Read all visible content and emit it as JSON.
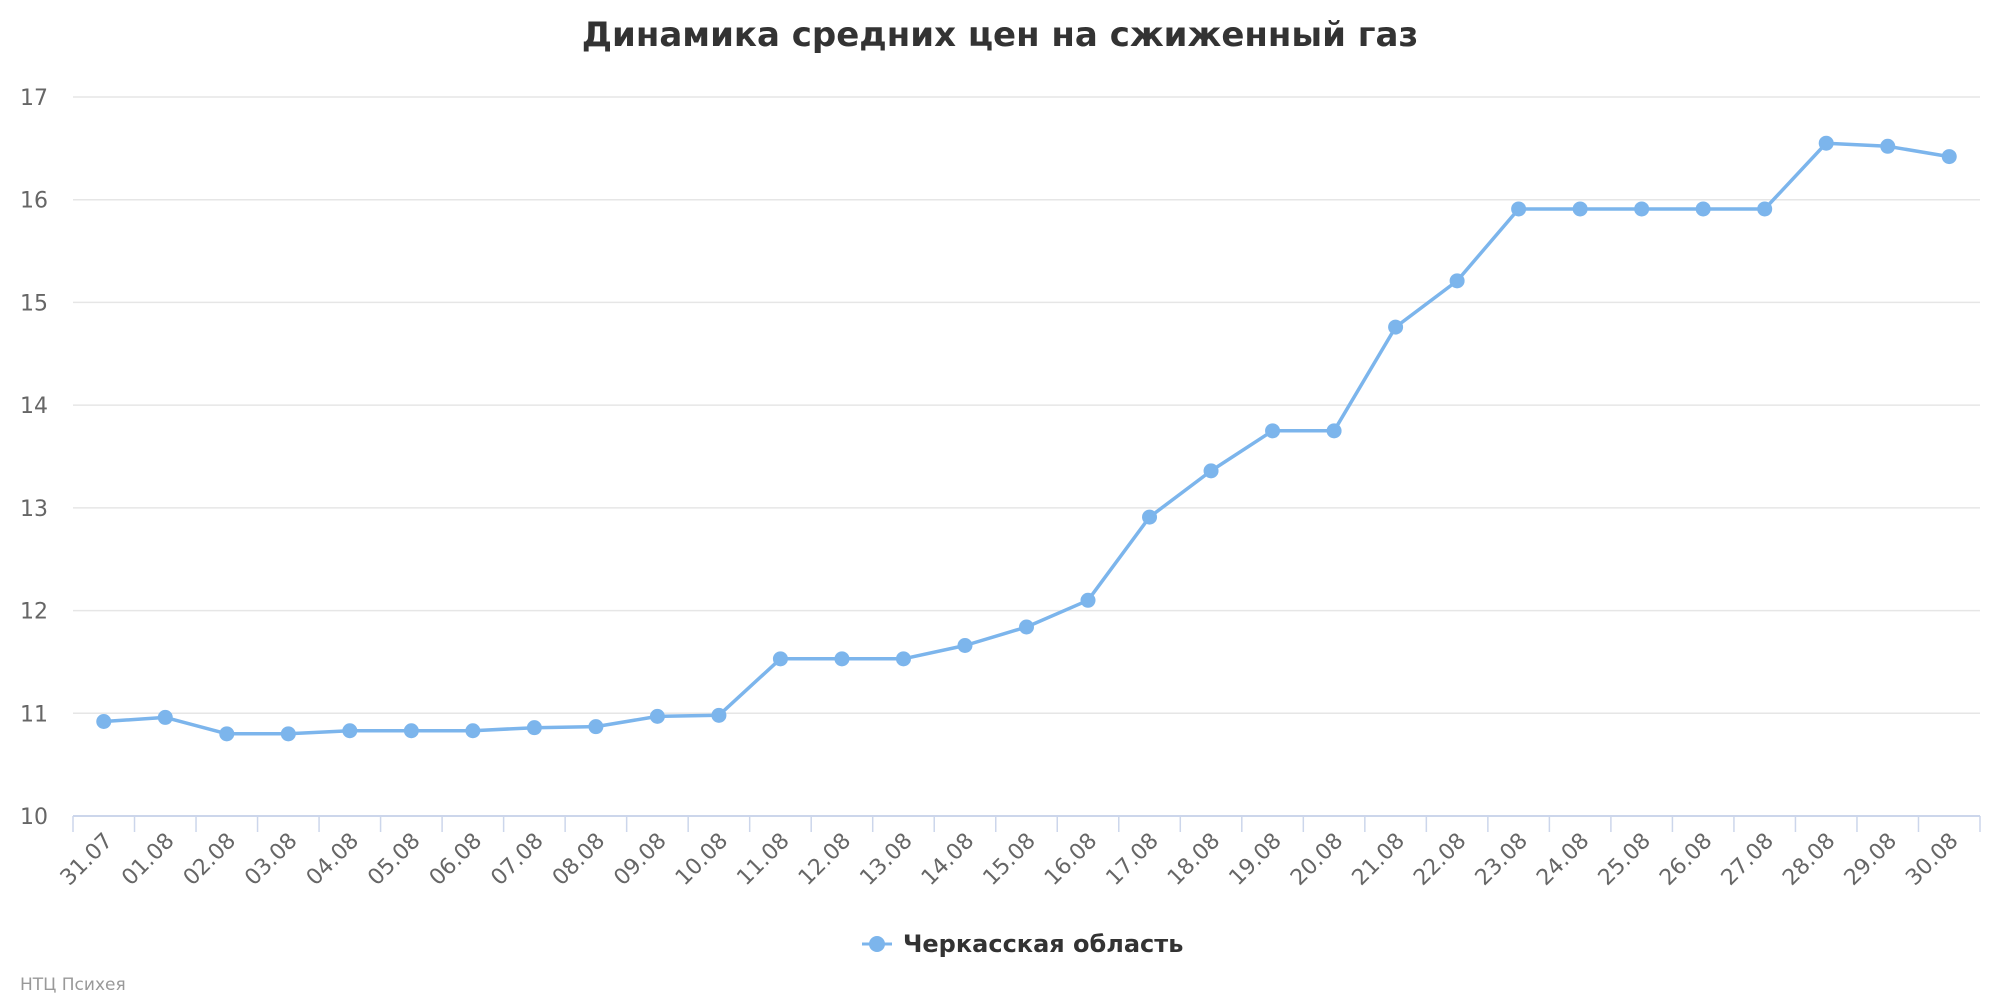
{
  "chart_data": {
    "type": "line",
    "title": "Динамика средних цен на сжиженный газ",
    "xlabel": "",
    "ylabel": "",
    "ylim": [
      10,
      17
    ],
    "yticks": [
      10,
      11,
      12,
      13,
      14,
      15,
      16,
      17
    ],
    "categories": [
      "31.07",
      "01.08",
      "02.08",
      "03.08",
      "04.08",
      "05.08",
      "06.08",
      "07.08",
      "08.08",
      "09.08",
      "10.08",
      "11.08",
      "12.08",
      "13.08",
      "14.08",
      "15.08",
      "16.08",
      "17.08",
      "18.08",
      "19.08",
      "20.08",
      "21.08",
      "22.08",
      "23.08",
      "24.08",
      "25.08",
      "26.08",
      "27.08",
      "28.08",
      "29.08",
      "30.08"
    ],
    "series": [
      {
        "name": "Черкасская область",
        "color": "#7cb5ec",
        "values": [
          10.92,
          10.96,
          10.8,
          10.8,
          10.83,
          10.83,
          10.83,
          10.86,
          10.87,
          10.97,
          10.98,
          11.53,
          11.53,
          11.53,
          11.66,
          11.84,
          12.1,
          12.91,
          13.36,
          13.75,
          13.75,
          14.76,
          15.21,
          15.91,
          15.91,
          15.91,
          15.91,
          15.91,
          16.55,
          16.52,
          16.42
        ]
      }
    ],
    "grid": true,
    "legend_position": "bottom-center"
  },
  "credits": "НТЦ Психея"
}
